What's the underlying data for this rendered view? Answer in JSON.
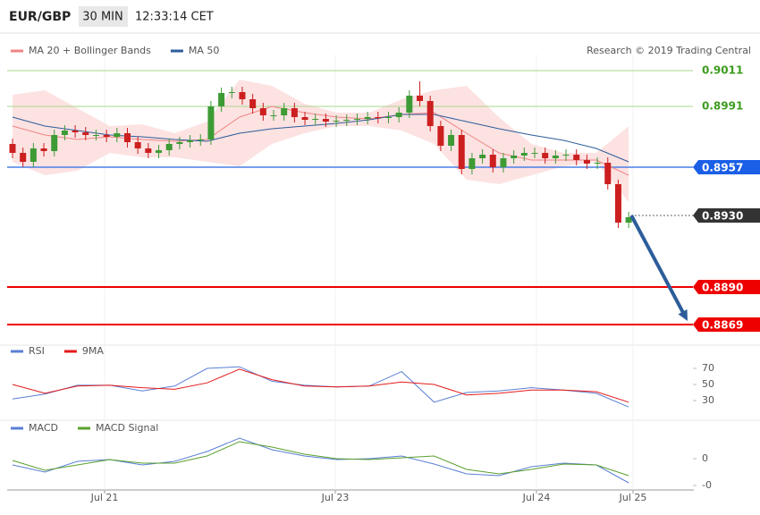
{
  "header": {
    "symbol": "EUR/GBP",
    "timeframe": "30 MIN",
    "time": "12:33:14 CET"
  },
  "chart_data": [
    {
      "type": "candlestick",
      "credit": "Research © 2019 Trading Central",
      "ylim": [
        0.8858,
        0.902
      ],
      "candles": {
        "up_color": "#3d9b35",
        "down_color": "#cc1f1f",
        "open": [
          0.897,
          0.8965,
          0.896,
          0.89675,
          0.8966,
          0.8975,
          0.89775,
          0.89765,
          0.8975,
          0.8975,
          0.8974,
          0.8976,
          0.8971,
          0.89675,
          0.8965,
          0.89665,
          0.897,
          0.8971,
          0.8972,
          0.89725,
          0.8991,
          0.89985,
          0.8999,
          0.8995,
          0.899,
          0.8986,
          0.8986,
          0.899,
          0.8985,
          0.89835,
          0.8984,
          0.89825,
          0.8983,
          0.89835,
          0.8984,
          0.8985,
          0.89845,
          0.8985,
          0.89875,
          0.8997,
          0.8994,
          0.898,
          0.8969,
          0.8975,
          0.8956,
          0.8962,
          0.8964,
          0.8957,
          0.8962,
          0.89635,
          0.8965,
          0.8965,
          0.8962,
          0.89635,
          0.8964,
          0.8961,
          0.8959,
          0.89595,
          0.89475,
          0.8926
        ],
        "high": [
          0.8973,
          0.8968,
          0.89705,
          0.89705,
          0.8978,
          0.89805,
          0.89805,
          0.89795,
          0.8978,
          0.8978,
          0.8979,
          0.8979,
          0.8974,
          0.89705,
          0.89695,
          0.8973,
          0.8974,
          0.8975,
          0.89755,
          0.8994,
          0.90015,
          0.9002,
          0.9002,
          0.8998,
          0.8993,
          0.8989,
          0.8993,
          0.8993,
          0.8988,
          0.8987,
          0.8987,
          0.8986,
          0.89865,
          0.8987,
          0.8988,
          0.8988,
          0.8988,
          0.89905,
          0.9,
          0.9005,
          0.8997,
          0.8983,
          0.8978,
          0.8978,
          0.8965,
          0.8967,
          0.8967,
          0.8965,
          0.89665,
          0.8968,
          0.8968,
          0.8968,
          0.89665,
          0.8967,
          0.8967,
          0.8964,
          0.89625,
          0.89625,
          0.895,
          0.8932
        ],
        "low": [
          0.8962,
          0.8957,
          0.8957,
          0.8963,
          0.8963,
          0.8972,
          0.89735,
          0.8972,
          0.8972,
          0.8971,
          0.8971,
          0.8968,
          0.89645,
          0.8962,
          0.8962,
          0.89635,
          0.8967,
          0.8968,
          0.8969,
          0.89695,
          0.8988,
          0.89955,
          0.8992,
          0.8987,
          0.8983,
          0.8983,
          0.8983,
          0.8982,
          0.89805,
          0.89805,
          0.89795,
          0.89795,
          0.898,
          0.89805,
          0.8981,
          0.89815,
          0.89815,
          0.8982,
          0.89845,
          0.8991,
          0.8977,
          0.8966,
          0.8966,
          0.8953,
          0.8953,
          0.8959,
          0.8954,
          0.8954,
          0.8959,
          0.89605,
          0.8962,
          0.8959,
          0.8959,
          0.89605,
          0.8958,
          0.8956,
          0.8956,
          0.89445,
          0.8923,
          0.8923
        ],
        "close": [
          0.8965,
          0.896,
          0.89675,
          0.8966,
          0.8975,
          0.89775,
          0.89765,
          0.8975,
          0.8975,
          0.8974,
          0.8976,
          0.8971,
          0.89675,
          0.8965,
          0.89665,
          0.897,
          0.8971,
          0.8972,
          0.89725,
          0.8991,
          0.89985,
          0.8999,
          0.8995,
          0.899,
          0.8986,
          0.8986,
          0.899,
          0.8985,
          0.89835,
          0.8984,
          0.89825,
          0.8983,
          0.89835,
          0.8984,
          0.8985,
          0.89845,
          0.8985,
          0.89875,
          0.8997,
          0.8994,
          0.898,
          0.8969,
          0.8975,
          0.8956,
          0.8962,
          0.8964,
          0.8957,
          0.8962,
          0.89635,
          0.8965,
          0.8965,
          0.8962,
          0.89635,
          0.8964,
          0.8961,
          0.8959,
          0.89595,
          0.89475,
          0.8926,
          0.8929
        ]
      },
      "series": [
        {
          "name": "MA 20 + Bollinger Bands",
          "color": "#ef8585",
          "band_color": "#fde2e2",
          "values": [
            0.898,
            0.8975,
            0.89725,
            0.8974,
            0.89725,
            0.89715,
            0.89725,
            0.8985,
            0.8991,
            0.89875,
            0.8985,
            0.8984,
            0.89865,
            0.89875,
            0.8976,
            0.8965,
            0.8961,
            0.8961,
            0.8961,
            0.89525
          ],
          "upper": [
            0.89975,
            0.9,
            0.899,
            0.898,
            0.8981,
            0.8976,
            0.89825,
            0.9006,
            0.90025,
            0.89925,
            0.89875,
            0.89875,
            0.8995,
            0.9,
            0.90025,
            0.8985,
            0.897,
            0.8965,
            0.8965,
            0.898
          ],
          "lower": [
            0.896,
            0.89525,
            0.8955,
            0.8965,
            0.89625,
            0.89625,
            0.896,
            0.89575,
            0.897,
            0.8976,
            0.898,
            0.898,
            0.89775,
            0.897,
            0.895,
            0.89475,
            0.89525,
            0.89575,
            0.896,
            0.89375
          ]
        },
        {
          "name": "MA 50",
          "color": "#2c5d9a",
          "values": [
            0.8985,
            0.898,
            0.89775,
            0.8975,
            0.8974,
            0.89725,
            0.89715,
            0.8976,
            0.89785,
            0.898,
            0.89815,
            0.89835,
            0.89865,
            0.89865,
            0.89825,
            0.89785,
            0.8975,
            0.8972,
            0.89675,
            0.896
          ]
        }
      ],
      "levels": [
        {
          "price": 0.9011,
          "color": "#3d9b1f",
          "line_color": "#a6d88a",
          "style": "text"
        },
        {
          "price": 0.8991,
          "color": "#3d9b1f",
          "line_color": "#a6d88a",
          "style": "text"
        },
        {
          "price": 0.8957,
          "color": "#1a5fe6",
          "line_color": "#4a7ee6",
          "style": "box"
        },
        {
          "price": {
            "value": 0.893,
            "label": "0.8930"
          },
          "color": "#333333",
          "line_color": "#333333",
          "style": "dotted"
        },
        {
          "price": {
            "value": 0.889,
            "label": "0.8890"
          },
          "color": "#ee0000",
          "line_color": "#ee0000",
          "style": "box"
        },
        {
          "price": 0.8869,
          "color": "#ee0000",
          "line_color": "#ee0000",
          "style": "box"
        }
      ]
    },
    {
      "type": "line",
      "ylim": [
        10,
        80
      ],
      "yticks": [
        70,
        50,
        30
      ],
      "series": [
        {
          "name": "RSI",
          "color": "#5b7fd6",
          "values": [
            32,
            38,
            49,
            49,
            42,
            48,
            70,
            72,
            54,
            49,
            47,
            48,
            66,
            28,
            40,
            42,
            46,
            43,
            39,
            22
          ]
        },
        {
          "name": "9MA",
          "color": "#e41a1a",
          "values": [
            50,
            39,
            48,
            49,
            46,
            44,
            52,
            69,
            56,
            48,
            47,
            48,
            53,
            50,
            37,
            39,
            43,
            43,
            41,
            28
          ]
        }
      ]
    },
    {
      "type": "line",
      "ylim": [
        -0.0035,
        0.0028
      ],
      "yticks": [
        0,
        {
          "value": -0.003,
          "label": "-0"
        }
      ],
      "x_labels": [
        "Jul 21",
        "Jul 23",
        "Jul 24",
        "Jul 25"
      ],
      "series": [
        {
          "name": "MACD",
          "color": "#5b7fd6",
          "values": [
            -0.0007,
            -0.0015,
            -0.0003,
            -0.0001,
            -0.0007,
            -0.0003,
            0.0008,
            0.0023,
            0.001,
            0.0003,
            -0.0001,
            0,
            0.0003,
            -0.0006,
            -0.0017,
            -0.0019,
            -0.0009,
            -0.0005,
            -0.0007,
            -0.0027
          ]
        },
        {
          "name": "MACD Signal",
          "color": "#5aa02c",
          "values": [
            -0.0002,
            -0.0013,
            -0.0007,
            -0.0001,
            -0.0005,
            -0.0005,
            0.0003,
            0.0019,
            0.0013,
            0.0005,
            0,
            -0.0001,
            0.0001,
            0.0003,
            -0.0012,
            -0.0017,
            -0.0012,
            -0.0006,
            -0.0007,
            -0.0019
          ]
        }
      ]
    }
  ]
}
